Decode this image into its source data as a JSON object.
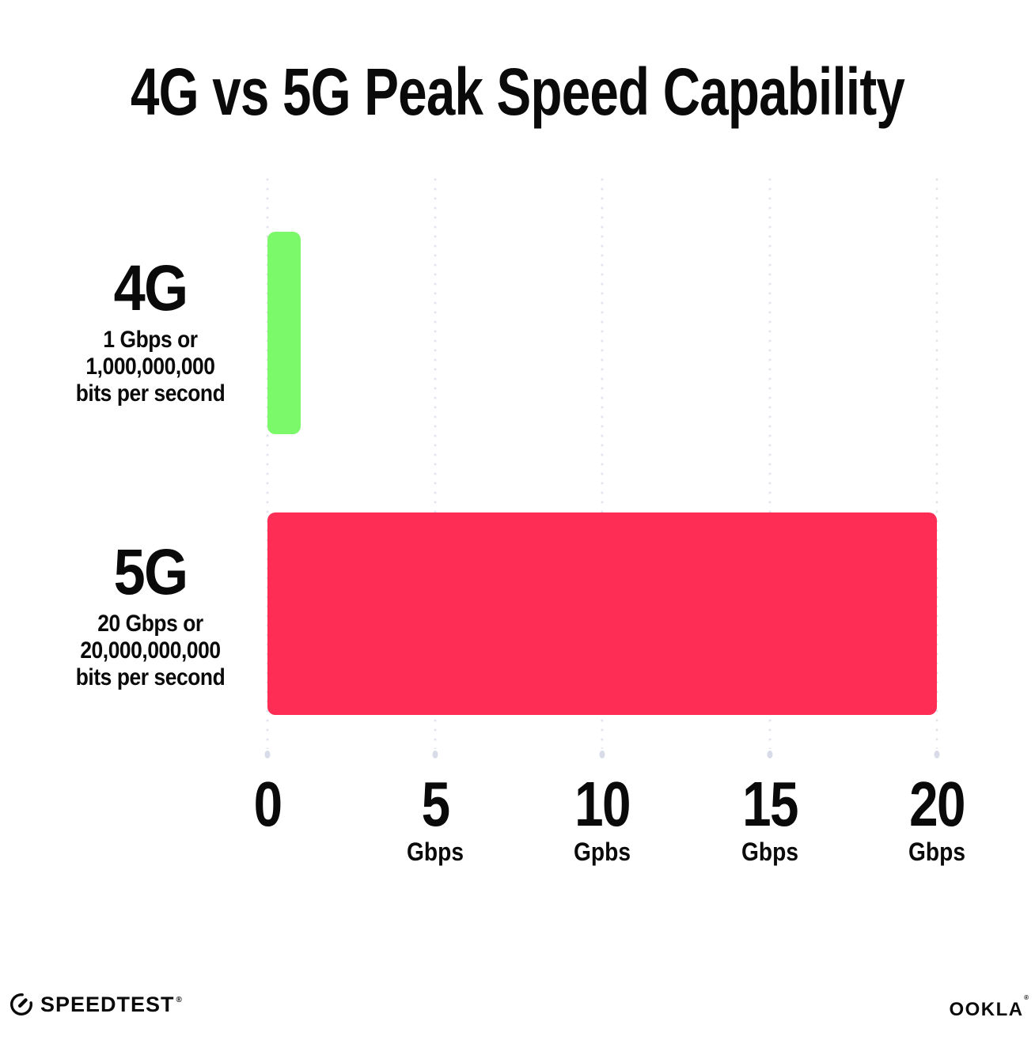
{
  "title": "4G vs 5G Peak Speed Capability",
  "chart_data": {
    "type": "bar",
    "orientation": "horizontal",
    "title": "4G vs 5G Peak Speed Capability",
    "categories": [
      "4G",
      "5G"
    ],
    "values": [
      1,
      20
    ],
    "value_unit": "Gbps",
    "xlim": [
      0,
      20
    ],
    "x_tick_values": [
      0,
      5,
      10,
      15,
      20
    ],
    "bar_colors": [
      "#7CF96B",
      "#FD2D55"
    ],
    "gridlines": "dotted-vertical",
    "legend": "none",
    "annotations": [
      "4G: 1 Gbps or 1,000,000,000 bits per second",
      "5G: 20 Gbps or 20,000,000,000 bits per second"
    ]
  },
  "rows": [
    {
      "label": "4G",
      "desc": [
        "1 Gbps or",
        "1,000,000,000",
        "bits per second"
      ]
    },
    {
      "label": "5G",
      "desc": [
        "20 Gbps or",
        "20,000,000,000",
        "bits per second"
      ]
    }
  ],
  "x_axis": {
    "ticks": [
      {
        "value": "0",
        "unit": ""
      },
      {
        "value": "5",
        "unit": "Gbps"
      },
      {
        "value": "10",
        "unit": "Gpbs"
      },
      {
        "value": "15",
        "unit": "Gbps"
      },
      {
        "value": "20",
        "unit": "Gbps"
      }
    ]
  },
  "footer": {
    "speedtest_label": "SPEEDTEST",
    "speedtest_reg": "®",
    "ookla_label": "OOKLA",
    "ookla_reg": "®"
  },
  "colors": {
    "bar_4g": "#7CF96B",
    "bar_5g": "#FD2D55",
    "text": "#0A0A0A",
    "gridline": "#E3E3EE",
    "background": "#FFFFFF"
  }
}
